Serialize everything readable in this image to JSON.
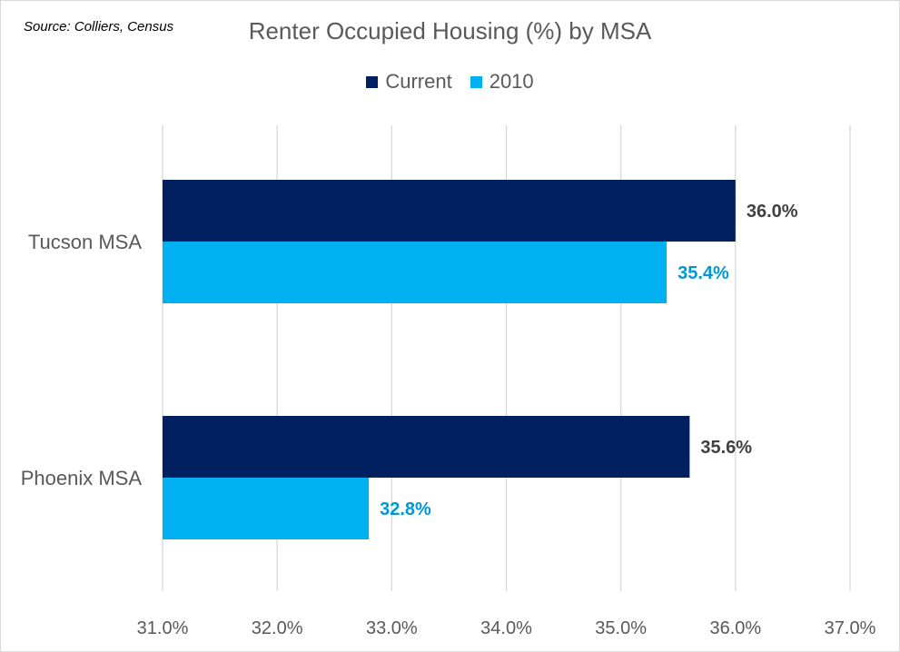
{
  "source_note": "Source: Colliers, Census",
  "chart_data": {
    "type": "bar",
    "orientation": "horizontal",
    "title": "Renter Occupied Housing (%) by MSA",
    "categories": [
      "Tucson MSA",
      "Phoenix MSA"
    ],
    "series": [
      {
        "name": "Current",
        "color": "#002060",
        "label_color": "#404040",
        "values": [
          36.0,
          35.6
        ]
      },
      {
        "name": "2010",
        "color": "#00b0f0",
        "label_color": "#0098d4",
        "values": [
          35.4,
          32.8
        ]
      }
    ],
    "xlim": [
      31.0,
      37.0
    ],
    "xticks": [
      31.0,
      32.0,
      33.0,
      34.0,
      35.0,
      36.0,
      37.0
    ],
    "tick_format": "0.0%",
    "gridlines": true,
    "legend_position": "top",
    "data_labels": true
  }
}
